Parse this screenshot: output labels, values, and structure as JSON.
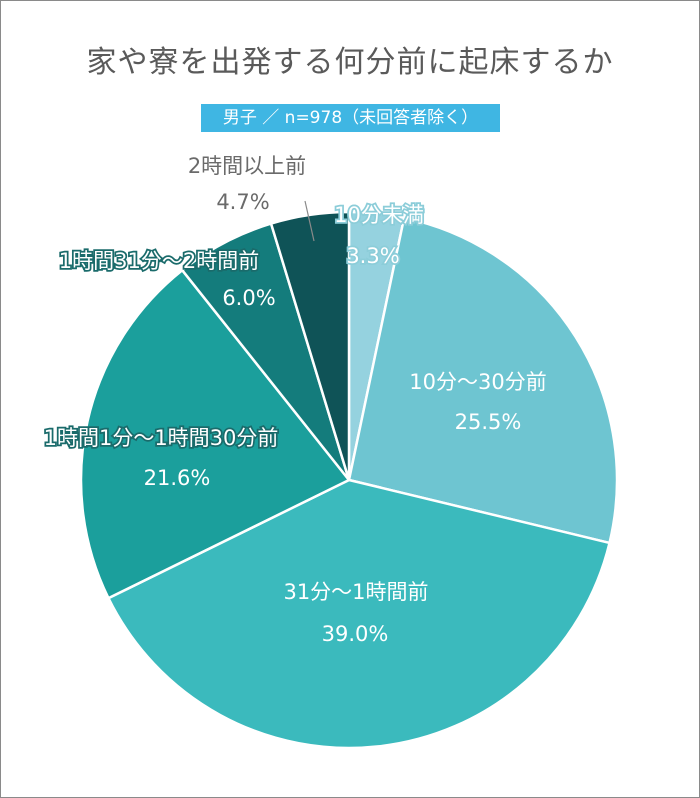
{
  "title": "家や寮を出発する何分前に起床するか",
  "subtitle": "男子 ／ n=978（未回答者除く）",
  "chart_data": {
    "type": "pie",
    "slices": [
      {
        "label": "10分未満",
        "value": 3.3,
        "value_label": "3.3%",
        "color": "#95d2df"
      },
      {
        "label": "10分～30分前",
        "value": 25.5,
        "value_label": "25.5%",
        "color": "#6ec5d1"
      },
      {
        "label": "31分～1時間前",
        "value": 39.0,
        "value_label": "39.0%",
        "color": "#3bbabd"
      },
      {
        "label": "1時間1分～1時間30分前",
        "value": 21.6,
        "value_label": "21.6%",
        "color": "#1b9f9c"
      },
      {
        "label": "1時間31分～2時間前",
        "value": 6.0,
        "value_label": "6.0%",
        "color": "#147c7c"
      },
      {
        "label": "2時間以上前",
        "value": 4.7,
        "value_label": "4.7%",
        "color": "#0f5357"
      }
    ]
  }
}
